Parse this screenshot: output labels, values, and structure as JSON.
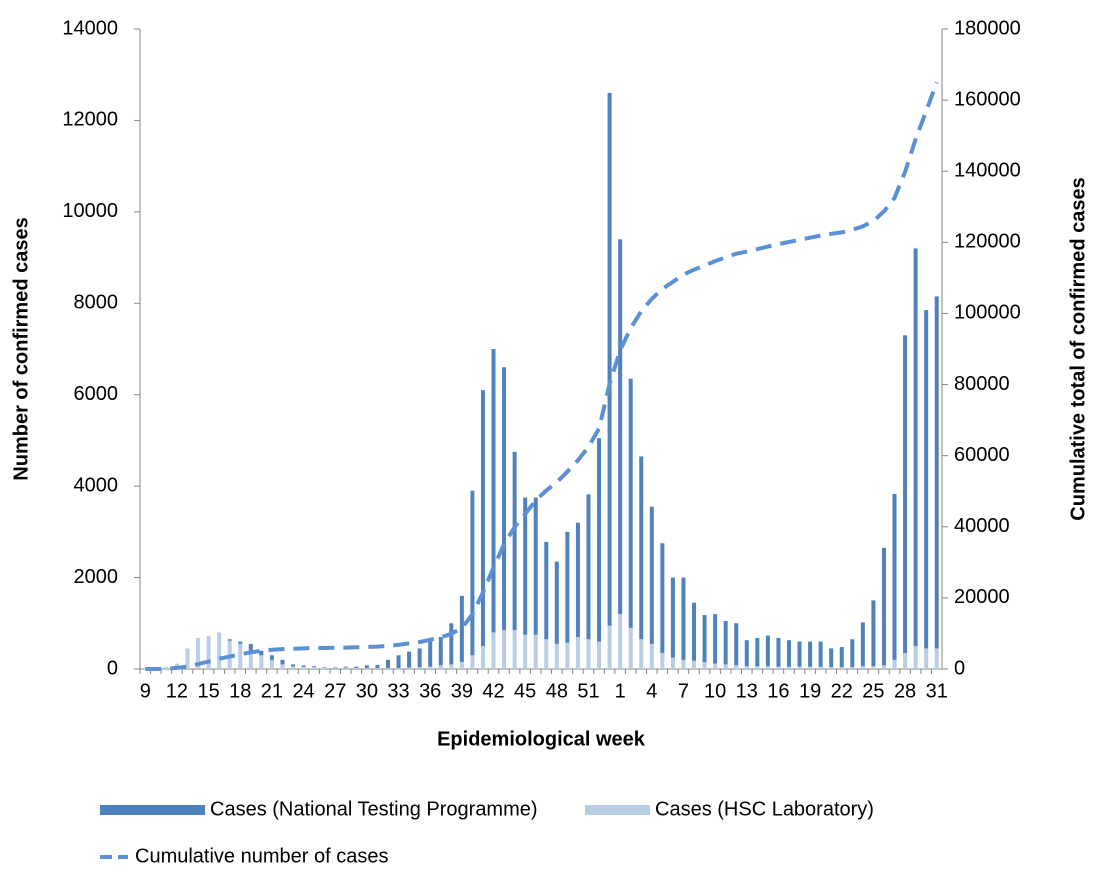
{
  "chart_data": {
    "type": "bar",
    "stacked": true,
    "x_label": "Epidemiological week",
    "y_label": "Number of confirmed cases",
    "y2_label": "Cumulative total of confirmed cases",
    "categories": [
      "9",
      null,
      null,
      "12",
      null,
      null,
      "15",
      null,
      null,
      "18",
      null,
      null,
      "21",
      null,
      null,
      "24",
      null,
      null,
      "27",
      null,
      null,
      "30",
      null,
      null,
      "33",
      null,
      null,
      "36",
      null,
      null,
      "39",
      null,
      null,
      "42",
      null,
      null,
      "45",
      null,
      null,
      "48",
      null,
      null,
      "51",
      null,
      null,
      "1",
      null,
      null,
      "4",
      null,
      null,
      "7",
      null,
      null,
      "10",
      null,
      null,
      "13",
      null,
      null,
      "16",
      null,
      null,
      "19",
      null,
      null,
      "22",
      null,
      null,
      "25",
      null,
      null,
      "28",
      null,
      null,
      "31"
    ],
    "series": [
      {
        "name": "Cases (National Testing Programme)",
        "color": "#4f81bd",
        "values": [
          0,
          0,
          0,
          0,
          0,
          0,
          0,
          0,
          30,
          50,
          150,
          100,
          100,
          100,
          40,
          30,
          20,
          10,
          10,
          20,
          30,
          60,
          70,
          180,
          280,
          350,
          410,
          550,
          620,
          900,
          1450,
          3600,
          5600,
          6200,
          5750,
          3900,
          3000,
          3000,
          2130,
          1800,
          2420,
          2500,
          3170,
          4450,
          11650,
          8200,
          5450,
          4000,
          3000,
          2400,
          1750,
          1800,
          1270,
          1030,
          1080,
          950,
          920,
          570,
          620,
          670,
          630,
          580,
          550,
          550,
          550,
          410,
          440,
          610,
          960,
          1440,
          2570,
          3630,
          6950,
          8700,
          7400,
          7700
        ]
      },
      {
        "name": "Cases (HSC Laboratory)",
        "color": "#b9cde5",
        "values": [
          10,
          20,
          50,
          120,
          450,
          680,
          720,
          800,
          620,
          550,
          400,
          300,
          200,
          100,
          60,
          50,
          40,
          30,
          30,
          30,
          20,
          20,
          20,
          20,
          20,
          30,
          40,
          50,
          80,
          100,
          150,
          300,
          500,
          800,
          850,
          850,
          750,
          750,
          650,
          550,
          580,
          700,
          650,
          600,
          950,
          1200,
          900,
          650,
          550,
          350,
          250,
          200,
          180,
          150,
          120,
          100,
          80,
          60,
          60,
          60,
          50,
          50,
          50,
          50,
          50,
          40,
          40,
          40,
          60,
          60,
          80,
          200,
          350,
          500,
          450,
          450
        ]
      },
      {
        "name": "Cumulative number of cases",
        "color": "#5b8fd6",
        "type": "line",
        "axis": "y2",
        "dashed": true,
        "values": [
          0,
          0,
          100,
          300,
          700,
          1400,
          2100,
          2900,
          3500,
          4100,
          4700,
          5100,
          5400,
          5600,
          5700,
          5800,
          5900,
          5900,
          6000,
          6000,
          6100,
          6200,
          6300,
          6500,
          6800,
          7200,
          7600,
          8200,
          8900,
          9900,
          11500,
          15400,
          21500,
          28500,
          35100,
          39900,
          43600,
          47400,
          50200,
          52500,
          55500,
          58700,
          62500,
          67600,
          80200,
          89600,
          95900,
          100600,
          104100,
          106900,
          108900,
          110900,
          112300,
          113500,
          114700,
          115800,
          116800,
          117400,
          118100,
          118800,
          119500,
          120100,
          120700,
          121300,
          121900,
          122400,
          122800,
          123500,
          124500,
          126000,
          128700,
          132500,
          139800,
          149000,
          156900,
          165000
        ]
      }
    ],
    "ylim": [
      0,
      14000
    ],
    "yticks": [
      0,
      2000,
      4000,
      6000,
      8000,
      10000,
      12000,
      14000
    ],
    "y2lim": [
      0,
      180000
    ],
    "y2ticks": [
      0,
      20000,
      40000,
      60000,
      80000,
      100000,
      120000,
      140000,
      160000,
      180000
    ],
    "grid": false,
    "legend": "bottom"
  }
}
